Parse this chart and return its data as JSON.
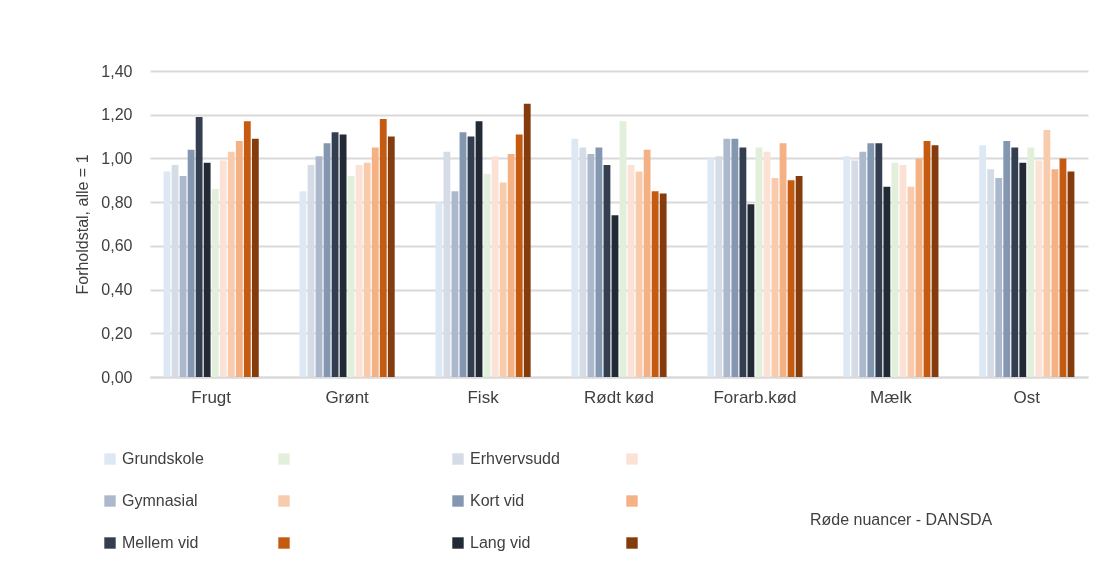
{
  "chart_data": {
    "type": "bar",
    "ylabel": "Forholdstal, alle = 1",
    "categories": [
      "Frugt",
      "Grønt",
      "Fisk",
      "Rødt kød",
      "Forarb.kød",
      "Mælk",
      "Ost"
    ],
    "series": [
      {
        "name": "Grundskole",
        "color": "#dde8f5",
        "values": [
          0.94,
          0.85,
          0.8,
          1.09,
          1.0,
          1.01,
          1.06
        ]
      },
      {
        "name": "Erhvervsudd",
        "color": "#d5dce6",
        "values": [
          0.97,
          0.97,
          1.03,
          1.05,
          1.01,
          0.99,
          0.95
        ]
      },
      {
        "name": "Gymnasial",
        "color": "#acb9cc",
        "values": [
          0.92,
          1.01,
          0.85,
          1.02,
          1.09,
          1.03,
          0.91
        ]
      },
      {
        "name": "Kort vid",
        "color": "#8497b0",
        "values": [
          1.04,
          1.07,
          1.12,
          1.05,
          1.09,
          1.07,
          1.08
        ]
      },
      {
        "name": "Mellem vid",
        "color": "#333f50",
        "values": [
          1.19,
          1.12,
          1.1,
          0.97,
          1.05,
          1.07,
          1.05
        ]
      },
      {
        "name": "Lang vid",
        "color": "#222a35",
        "values": [
          0.98,
          1.11,
          1.17,
          0.74,
          0.79,
          0.87,
          0.98
        ]
      },
      {
        "color": "#e2efda",
        "values": [
          0.86,
          0.92,
          0.93,
          1.17,
          1.05,
          0.98,
          1.05
        ]
      },
      {
        "color": "#fbe2d5",
        "values": [
          0.99,
          0.97,
          1.01,
          0.97,
          1.03,
          0.97,
          0.99
        ]
      },
      {
        "color": "#f8cbad",
        "values": [
          1.03,
          0.98,
          0.89,
          0.94,
          0.91,
          0.87,
          1.13
        ]
      },
      {
        "color": "#f4b183",
        "values": [
          1.08,
          1.05,
          1.02,
          1.04,
          1.07,
          1.0,
          0.95
        ]
      },
      {
        "color": "#c55a11",
        "values": [
          1.17,
          1.18,
          1.11,
          0.85,
          0.9,
          1.08,
          1.0
        ]
      },
      {
        "color": "#843c0c",
        "values": [
          1.09,
          1.1,
          1.25,
          0.84,
          0.92,
          1.06,
          0.94
        ]
      }
    ],
    "ylim": [
      0,
      1.4
    ],
    "yticks": [
      {
        "value": 0,
        "label": "0,00"
      },
      {
        "value": 0.2,
        "label": "0,20"
      },
      {
        "value": 0.4,
        "label": "0,40"
      },
      {
        "value": 0.6,
        "label": "0,60"
      },
      {
        "value": 0.8,
        "label": "0,80"
      },
      {
        "value": 1.0,
        "label": "1,00"
      },
      {
        "value": 1.2,
        "label": "1,20"
      },
      {
        "value": 1.4,
        "label": "1,40"
      }
    ],
    "grid": "y",
    "legend": "bottom",
    "annotations": [
      "Røde nuancer - DANSDA"
    ]
  }
}
